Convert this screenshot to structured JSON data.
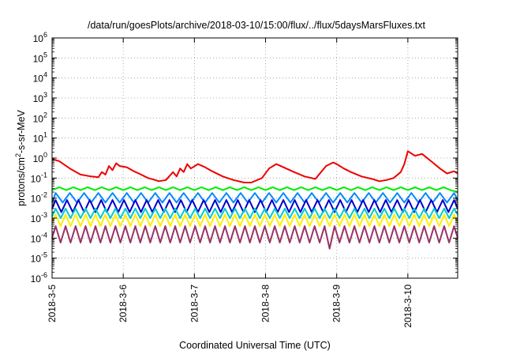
{
  "chart_data": {
    "type": "line",
    "title": "/data/run/goesPlots/archive/2018-03-10/15:00/flux/../flux/5daysMarsFluxes.txt",
    "xlabel": "Coordinated Universal Time (UTC)",
    "ylabel": "protons/cm²-s-sr-MeV",
    "yscale": "log",
    "ylim": [
      1e-06,
      1000000.0
    ],
    "xlim": [
      0,
      5.7
    ],
    "x_ticks": [
      {
        "x": 0,
        "label": "2018-3-5"
      },
      {
        "x": 1,
        "label": "2018-3-6"
      },
      {
        "x": 2,
        "label": "2018-3-7"
      },
      {
        "x": 3,
        "label": "2018-3-8"
      },
      {
        "x": 4,
        "label": "2018-3-9"
      },
      {
        "x": 5,
        "label": "2018-3-10"
      }
    ],
    "y_ticks": [
      {
        "exp": -6,
        "label": "10-6"
      },
      {
        "exp": -5,
        "label": "10-5"
      },
      {
        "exp": -4,
        "label": "10-4"
      },
      {
        "exp": -3,
        "label": "10-3"
      },
      {
        "exp": -2,
        "label": "10-2"
      },
      {
        "exp": -1,
        "label": "10-1"
      },
      {
        "exp": 0,
        "label": "100"
      },
      {
        "exp": 1,
        "label": "101"
      },
      {
        "exp": 2,
        "label": "102"
      },
      {
        "exp": 3,
        "label": "103"
      },
      {
        "exp": 4,
        "label": "104"
      },
      {
        "exp": 5,
        "label": "105"
      },
      {
        "exp": 6,
        "label": "106"
      }
    ],
    "grid": true,
    "legend": "none",
    "series": [
      {
        "color": "#ee0000",
        "x": [
          0.0,
          0.1,
          0.25,
          0.4,
          0.55,
          0.65,
          0.7,
          0.75,
          0.8,
          0.85,
          0.9,
          0.95,
          1.05,
          1.15,
          1.25,
          1.35,
          1.45,
          1.5,
          1.6,
          1.7,
          1.75,
          1.8,
          1.85,
          1.9,
          1.95,
          2.05,
          2.15,
          2.25,
          2.4,
          2.55,
          2.7,
          2.8,
          2.95,
          3.05,
          3.15,
          3.25,
          3.4,
          3.55,
          3.65,
          3.7,
          3.78,
          3.85,
          3.95,
          4.0,
          4.1,
          4.2,
          4.35,
          4.5,
          4.6,
          4.7,
          4.8,
          4.9,
          4.95,
          5.0,
          5.1,
          5.2,
          5.35,
          5.45,
          5.55,
          5.65,
          5.7
        ],
        "y": [
          0.9,
          0.7,
          0.3,
          0.15,
          0.12,
          0.11,
          0.2,
          0.15,
          0.4,
          0.25,
          0.55,
          0.4,
          0.35,
          0.22,
          0.15,
          0.1,
          0.08,
          0.07,
          0.08,
          0.2,
          0.12,
          0.3,
          0.2,
          0.5,
          0.3,
          0.5,
          0.35,
          0.22,
          0.12,
          0.08,
          0.06,
          0.06,
          0.1,
          0.3,
          0.5,
          0.35,
          0.2,
          0.12,
          0.1,
          0.09,
          0.2,
          0.4,
          0.6,
          0.5,
          0.3,
          0.2,
          0.12,
          0.09,
          0.07,
          0.08,
          0.1,
          0.2,
          0.5,
          2.2,
          1.3,
          1.6,
          0.6,
          0.3,
          0.17,
          0.22,
          0.17
        ]
      },
      {
        "color": "#00ee00",
        "x": [
          0.0,
          0.1,
          0.2,
          0.3,
          0.4,
          0.5,
          0.6,
          0.7,
          0.8,
          0.9,
          1.0,
          1.1,
          1.2,
          1.3,
          1.4,
          1.5,
          1.6,
          1.7,
          1.8,
          1.9,
          2.0,
          2.1,
          2.2,
          2.3,
          2.4,
          2.5,
          2.6,
          2.7,
          2.8,
          2.9,
          3.0,
          3.1,
          3.2,
          3.3,
          3.4,
          3.5,
          3.6,
          3.7,
          3.8,
          3.9,
          4.0,
          4.1,
          4.2,
          4.3,
          4.4,
          4.5,
          4.6,
          4.7,
          4.8,
          4.9,
          5.0,
          5.1,
          5.2,
          5.3,
          5.4,
          5.5,
          5.6,
          5.7
        ],
        "y": [
          0.025,
          0.035,
          0.025,
          0.035,
          0.025,
          0.035,
          0.025,
          0.035,
          0.025,
          0.035,
          0.025,
          0.035,
          0.025,
          0.035,
          0.025,
          0.035,
          0.025,
          0.035,
          0.025,
          0.035,
          0.025,
          0.035,
          0.025,
          0.035,
          0.025,
          0.035,
          0.025,
          0.035,
          0.025,
          0.035,
          0.025,
          0.035,
          0.025,
          0.035,
          0.025,
          0.035,
          0.025,
          0.035,
          0.025,
          0.035,
          0.025,
          0.035,
          0.025,
          0.035,
          0.025,
          0.035,
          0.025,
          0.035,
          0.025,
          0.035,
          0.025,
          0.035,
          0.025,
          0.035,
          0.025,
          0.035,
          0.025,
          0.02
        ]
      },
      {
        "color": "#0088ff",
        "x": [
          0.0,
          0.05,
          0.15,
          0.25,
          0.35,
          0.45,
          0.55,
          0.65,
          0.75,
          0.85,
          0.95,
          1.05,
          1.15,
          1.25,
          1.35,
          1.45,
          1.55,
          1.65,
          1.75,
          1.85,
          1.95,
          2.05,
          2.15,
          2.25,
          2.35,
          2.45,
          2.55,
          2.65,
          2.75,
          2.85,
          2.95,
          3.05,
          3.15,
          3.25,
          3.35,
          3.45,
          3.55,
          3.65,
          3.75,
          3.85,
          3.95,
          4.05,
          4.15,
          4.25,
          4.35,
          4.45,
          4.55,
          4.65,
          4.75,
          4.85,
          4.95,
          5.05,
          5.15,
          5.25,
          5.35,
          5.45,
          5.55,
          5.65,
          5.7
        ],
        "y": [
          0.006,
          0.018,
          0.006,
          0.018,
          0.006,
          0.018,
          0.006,
          0.018,
          0.006,
          0.018,
          0.006,
          0.018,
          0.006,
          0.018,
          0.006,
          0.018,
          0.006,
          0.018,
          0.006,
          0.018,
          0.006,
          0.018,
          0.006,
          0.018,
          0.006,
          0.018,
          0.006,
          0.018,
          0.006,
          0.018,
          0.006,
          0.018,
          0.006,
          0.018,
          0.006,
          0.018,
          0.006,
          0.018,
          0.006,
          0.018,
          0.006,
          0.018,
          0.006,
          0.018,
          0.006,
          0.018,
          0.006,
          0.018,
          0.006,
          0.018,
          0.006,
          0.018,
          0.006,
          0.018,
          0.006,
          0.018,
          0.006,
          0.018,
          0.008
        ]
      },
      {
        "color": "#0000cc",
        "x": [
          0.0,
          0.05,
          0.13,
          0.21,
          0.29,
          0.37,
          0.45,
          0.53,
          0.61,
          0.69,
          0.77,
          0.85,
          0.93,
          1.01,
          1.09,
          1.17,
          1.25,
          1.33,
          1.41,
          1.49,
          1.57,
          1.65,
          1.73,
          1.81,
          1.89,
          1.97,
          2.05,
          2.13,
          2.21,
          2.29,
          2.37,
          2.45,
          2.53,
          2.61,
          2.69,
          2.77,
          2.85,
          2.93,
          3.01,
          3.09,
          3.17,
          3.25,
          3.33,
          3.41,
          3.49,
          3.57,
          3.65,
          3.73,
          3.81,
          3.89,
          3.97,
          4.05,
          4.13,
          4.21,
          4.29,
          4.37,
          4.45,
          4.53,
          4.61,
          4.69,
          4.77,
          4.85,
          4.93,
          5.01,
          5.09,
          5.17,
          5.25,
          5.33,
          5.41,
          5.49,
          5.57,
          5.65,
          5.7
        ],
        "y": [
          0.003,
          0.008,
          0.002,
          0.008,
          0.002,
          0.008,
          0.002,
          0.008,
          0.002,
          0.008,
          0.002,
          0.008,
          0.002,
          0.008,
          0.002,
          0.008,
          0.002,
          0.008,
          0.002,
          0.008,
          0.002,
          0.008,
          0.002,
          0.008,
          0.002,
          0.008,
          0.002,
          0.008,
          0.002,
          0.008,
          0.002,
          0.008,
          0.002,
          0.008,
          0.002,
          0.008,
          0.002,
          0.008,
          0.002,
          0.008,
          0.002,
          0.008,
          0.002,
          0.008,
          0.002,
          0.008,
          0.002,
          0.008,
          0.002,
          0.008,
          0.002,
          0.008,
          0.002,
          0.008,
          0.002,
          0.008,
          0.002,
          0.008,
          0.002,
          0.008,
          0.002,
          0.008,
          0.002,
          0.008,
          0.002,
          0.008,
          0.002,
          0.008,
          0.002,
          0.008,
          0.002,
          0.008,
          0.003
        ]
      },
      {
        "color": "#00cccc",
        "x": [
          0.0,
          0.05,
          0.12,
          0.19,
          0.26,
          0.33,
          0.4,
          0.47,
          0.54,
          0.61,
          0.68,
          0.75,
          0.82,
          0.89,
          0.96,
          1.03,
          1.1,
          1.17,
          1.24,
          1.31,
          1.38,
          1.45,
          1.52,
          1.59,
          1.66,
          1.73,
          1.8,
          1.87,
          1.94,
          2.01,
          2.08,
          2.15,
          2.22,
          2.29,
          2.36,
          2.43,
          2.5,
          2.57,
          2.64,
          2.71,
          2.78,
          2.85,
          2.92,
          2.99,
          3.06,
          3.13,
          3.2,
          3.27,
          3.34,
          3.41,
          3.48,
          3.55,
          3.62,
          3.69,
          3.76,
          3.83,
          3.9,
          3.97,
          4.04,
          4.11,
          4.18,
          4.25,
          4.32,
          4.39,
          4.46,
          4.53,
          4.6,
          4.67,
          4.74,
          4.81,
          4.88,
          4.95,
          5.02,
          5.09,
          5.16,
          5.23,
          5.3,
          5.37,
          5.44,
          5.51,
          5.58,
          5.65,
          5.7
        ],
        "y": [
          0.0012,
          0.003,
          0.001,
          0.003,
          0.001,
          0.003,
          0.001,
          0.003,
          0.001,
          0.003,
          0.001,
          0.003,
          0.001,
          0.003,
          0.001,
          0.003,
          0.001,
          0.003,
          0.001,
          0.003,
          0.001,
          0.003,
          0.001,
          0.003,
          0.001,
          0.003,
          0.001,
          0.003,
          0.001,
          0.003,
          0.001,
          0.003,
          0.001,
          0.003,
          0.001,
          0.003,
          0.001,
          0.003,
          0.001,
          0.003,
          0.001,
          0.003,
          0.001,
          0.003,
          0.001,
          0.003,
          0.001,
          0.003,
          0.001,
          0.003,
          0.001,
          0.003,
          0.001,
          0.003,
          0.001,
          0.003,
          0.001,
          0.003,
          0.001,
          0.003,
          0.001,
          0.003,
          0.001,
          0.003,
          0.001,
          0.003,
          0.001,
          0.003,
          0.001,
          0.003,
          0.001,
          0.003,
          0.001,
          0.003,
          0.001,
          0.003,
          0.001,
          0.003,
          0.001,
          0.003,
          0.001,
          0.003,
          0.0015
        ]
      },
      {
        "color": "#ffee00",
        "x": [
          0.0,
          0.05,
          0.12,
          0.19,
          0.26,
          0.33,
          0.4,
          0.47,
          0.54,
          0.61,
          0.68,
          0.75,
          0.82,
          0.89,
          0.96,
          1.03,
          1.1,
          1.17,
          1.24,
          1.31,
          1.38,
          1.45,
          1.52,
          1.59,
          1.66,
          1.73,
          1.8,
          1.87,
          1.94,
          2.01,
          2.08,
          2.15,
          2.22,
          2.29,
          2.36,
          2.43,
          2.5,
          2.57,
          2.64,
          2.71,
          2.78,
          2.85,
          2.92,
          2.99,
          3.06,
          3.13,
          3.2,
          3.27,
          3.34,
          3.41,
          3.48,
          3.55,
          3.62,
          3.69,
          3.76,
          3.83,
          3.9,
          3.97,
          4.04,
          4.11,
          4.18,
          4.25,
          4.32,
          4.39,
          4.46,
          4.53,
          4.6,
          4.67,
          4.74,
          4.81,
          4.88,
          4.95,
          5.02,
          5.09,
          5.16,
          5.23,
          5.3,
          5.37,
          5.44,
          5.51,
          5.58,
          5.65,
          5.7
        ],
        "y": [
          0.0006,
          0.0015,
          0.0004,
          0.0015,
          0.0004,
          0.0015,
          0.0004,
          0.0015,
          0.0004,
          0.0015,
          0.0004,
          0.0015,
          0.0004,
          0.0015,
          0.0004,
          0.0015,
          0.0004,
          0.0015,
          0.0004,
          0.0015,
          0.0004,
          0.0015,
          0.0004,
          0.0015,
          0.0004,
          0.0015,
          0.0004,
          0.0015,
          0.0004,
          0.0015,
          0.0004,
          0.0015,
          0.0004,
          0.0015,
          0.0004,
          0.0015,
          0.0004,
          0.0015,
          0.0004,
          0.0015,
          0.0004,
          0.0015,
          0.0004,
          0.0015,
          0.0004,
          0.0015,
          0.0004,
          0.0015,
          0.0004,
          0.0015,
          0.0004,
          0.0015,
          0.0004,
          0.0015,
          0.0004,
          0.0015,
          0.0004,
          0.0015,
          0.0004,
          0.0015,
          0.0004,
          0.0015,
          0.0004,
          0.0015,
          0.0004,
          0.0015,
          0.0004,
          0.0015,
          0.0004,
          0.0015,
          0.0004,
          0.0015,
          0.0004,
          0.0015,
          0.0004,
          0.0015,
          0.0004,
          0.0015,
          0.0004,
          0.0015,
          0.0004,
          0.0015,
          0.0006
        ]
      },
      {
        "color": "#993366",
        "x": [
          0.0,
          0.05,
          0.12,
          0.19,
          0.26,
          0.33,
          0.4,
          0.47,
          0.54,
          0.61,
          0.68,
          0.75,
          0.82,
          0.89,
          0.96,
          1.03,
          1.1,
          1.17,
          1.24,
          1.31,
          1.38,
          1.45,
          1.52,
          1.59,
          1.66,
          1.73,
          1.8,
          1.87,
          1.94,
          2.01,
          2.08,
          2.15,
          2.22,
          2.29,
          2.36,
          2.43,
          2.5,
          2.57,
          2.64,
          2.71,
          2.78,
          2.85,
          2.92,
          2.99,
          3.06,
          3.13,
          3.2,
          3.27,
          3.34,
          3.41,
          3.48,
          3.55,
          3.62,
          3.69,
          3.76,
          3.83,
          3.9,
          3.97,
          4.04,
          4.11,
          4.18,
          4.25,
          4.32,
          4.39,
          4.46,
          4.53,
          4.6,
          4.67,
          4.74,
          4.81,
          4.88,
          4.95,
          5.02,
          5.09,
          5.16,
          5.23,
          5.3,
          5.37,
          5.44,
          5.51,
          5.58,
          5.65,
          5.7
        ],
        "y": [
          0.0001,
          0.0004,
          6e-05,
          0.0004,
          6e-05,
          0.0004,
          6e-05,
          0.0004,
          6e-05,
          0.0004,
          6e-05,
          0.0004,
          6e-05,
          0.0004,
          6e-05,
          0.0004,
          6e-05,
          0.0004,
          6e-05,
          0.0004,
          6e-05,
          0.0004,
          6e-05,
          0.0004,
          6e-05,
          0.0004,
          6e-05,
          0.0004,
          6e-05,
          0.0004,
          6e-05,
          0.0004,
          6e-05,
          0.0004,
          6e-05,
          0.0004,
          6e-05,
          0.0004,
          6e-05,
          0.0004,
          6e-05,
          0.0004,
          6e-05,
          0.0004,
          6e-05,
          0.0004,
          6e-05,
          0.0004,
          6e-05,
          0.0004,
          6e-05,
          0.0004,
          6e-05,
          0.0004,
          6e-05,
          0.0004,
          3e-05,
          0.0004,
          6e-05,
          0.0004,
          6e-05,
          0.0004,
          6e-05,
          0.0004,
          6e-05,
          0.0004,
          6e-05,
          0.0004,
          6e-05,
          0.0004,
          6e-05,
          0.0004,
          6e-05,
          0.0004,
          6e-05,
          0.0004,
          6e-05,
          0.0004,
          6e-05,
          0.0004,
          6e-05,
          0.0004,
          0.0001
        ]
      }
    ]
  }
}
